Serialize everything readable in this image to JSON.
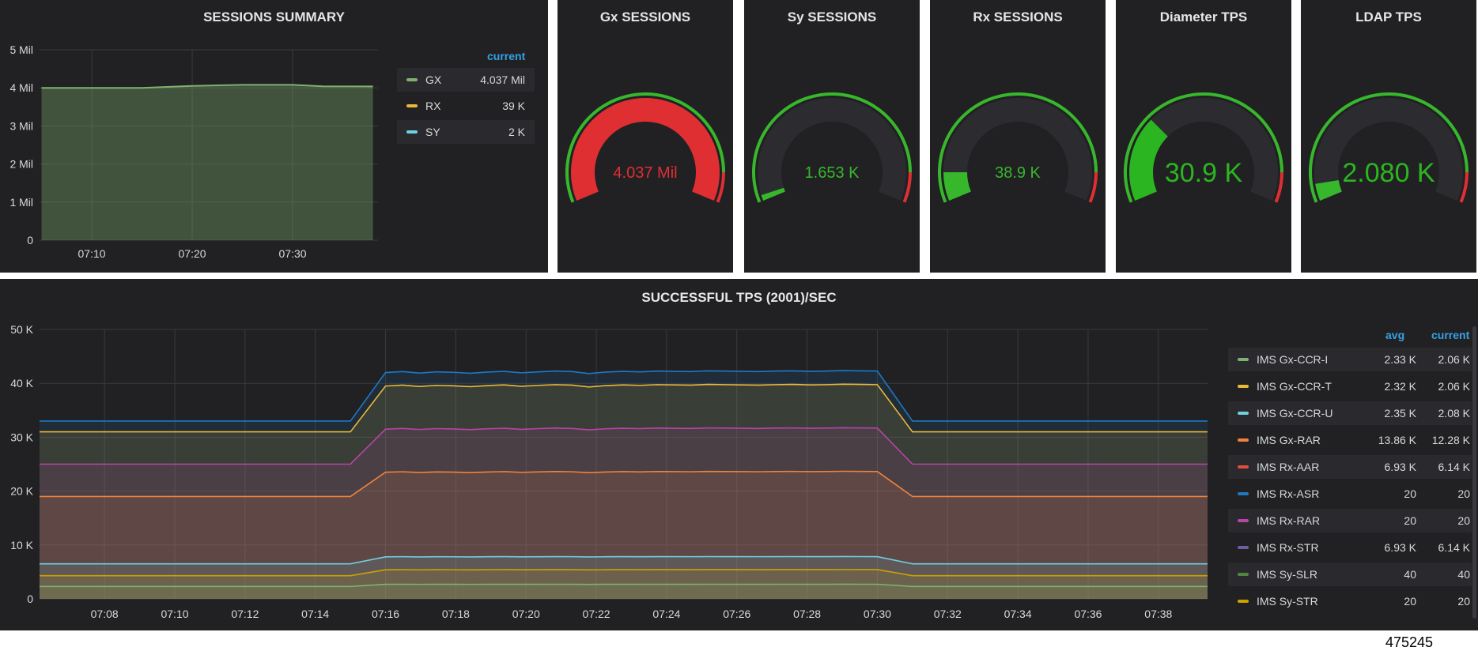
{
  "sessions_summary": {
    "title": "SESSIONS SUMMARY",
    "legend_header": "current",
    "legend": [
      {
        "name": "GX",
        "current": "4.037 Mil",
        "color": "#7eb26d"
      },
      {
        "name": "RX",
        "current": "39 K",
        "color": "#eab839"
      },
      {
        "name": "SY",
        "current": "2 K",
        "color": "#6ed0e0"
      }
    ]
  },
  "gauges": [
    {
      "title": "Gx SESSIONS",
      "value_text": "4.037 Mil",
      "fraction": 1.0,
      "fill_color": "#e02f33",
      "text_color": "#e02f33",
      "big": false
    },
    {
      "title": "Sy SESSIONS",
      "value_text": "1.653 K",
      "fraction": 0.02,
      "fill_color": "#37b72b",
      "text_color": "#37b72b",
      "big": false
    },
    {
      "title": "Rx SESSIONS",
      "value_text": "38.9 K",
      "fraction": 0.1,
      "fill_color": "#37b72b",
      "text_color": "#37b72b",
      "big": false
    },
    {
      "title": "Diameter TPS",
      "value_text": "30.9 K",
      "fraction": 0.3,
      "fill_color": "#2bb520",
      "text_color": "#2bb520",
      "big": true
    },
    {
      "title": "LDAP TPS",
      "value_text": "2.080 K",
      "fraction": 0.06,
      "fill_color": "#37b72b",
      "text_color": "#2bb520",
      "big": true
    }
  ],
  "tps_panel": {
    "title": "SUCCESSFUL TPS (2001)/SEC",
    "legend_headers": {
      "avg": "avg",
      "current": "current"
    },
    "legend": [
      {
        "name": "IMS Gx-CCR-I",
        "avg": "2.33 K",
        "current": "2.06 K",
        "color": "#7eb26d"
      },
      {
        "name": "IMS Gx-CCR-T",
        "avg": "2.32 K",
        "current": "2.06 K",
        "color": "#eab839"
      },
      {
        "name": "IMS Gx-CCR-U",
        "avg": "2.35 K",
        "current": "2.08 K",
        "color": "#6ed0e0"
      },
      {
        "name": "IMS Gx-RAR",
        "avg": "13.86 K",
        "current": "12.28 K",
        "color": "#ef843c"
      },
      {
        "name": "IMS Rx-AAR",
        "avg": "6.93 K",
        "current": "6.14 K",
        "color": "#e24d42"
      },
      {
        "name": "IMS Rx-ASR",
        "avg": "20",
        "current": "20",
        "color": "#1f78c1"
      },
      {
        "name": "IMS Rx-RAR",
        "avg": "20",
        "current": "20",
        "color": "#ba43a9"
      },
      {
        "name": "IMS Rx-STR",
        "avg": "6.93 K",
        "current": "6.14 K",
        "color": "#705da0"
      },
      {
        "name": "IMS Sy-SLR",
        "avg": "40",
        "current": "40",
        "color": "#508642"
      },
      {
        "name": "IMS Sy-STR",
        "avg": "20",
        "current": "20",
        "color": "#cca300"
      }
    ]
  },
  "figure_id": "475245",
  "chart_data": [
    {
      "type": "area",
      "title": "SESSIONS SUMMARY",
      "x": [
        "07:05",
        "07:15",
        "07:20",
        "07:25",
        "07:30",
        "07:33",
        "07:38"
      ],
      "x_ticks": [
        "07:10",
        "07:20",
        "07:30"
      ],
      "y_ticks": [
        "0",
        "1 Mil",
        "2 Mil",
        "3 Mil",
        "4 Mil",
        "5 Mil"
      ],
      "ylim": [
        0,
        5000000
      ],
      "grid": true,
      "legend_position": "right",
      "series": [
        {
          "name": "GX",
          "values": [
            4000000,
            4000000,
            4050000,
            4080000,
            4080000,
            4040000,
            4037000
          ]
        }
      ]
    },
    {
      "type": "area",
      "title": "SUCCESSFUL TPS (2001)/SEC",
      "x_ticks": [
        "07:08",
        "07:10",
        "07:12",
        "07:14",
        "07:16",
        "07:18",
        "07:20",
        "07:22",
        "07:24",
        "07:26",
        "07:28",
        "07:30",
        "07:32",
        "07:34",
        "07:36",
        "07:38"
      ],
      "y_ticks": [
        "0",
        "10 K",
        "20 K",
        "30 K",
        "40 K",
        "50 K"
      ],
      "ylim": [
        0,
        50000
      ],
      "xlim": [
        "07:06",
        "07:39"
      ],
      "grid": true,
      "legend_position": "right",
      "stacked_lines": [
        {
          "name": "IMS Rx-ASR",
          "color": "#1f78c1",
          "base": 33000,
          "peak": 42000
        },
        {
          "name": "IMS Gx-CCR-T",
          "color": "#eab839",
          "base": 31000,
          "peak": 39500
        },
        {
          "name": "IMS Rx-RAR",
          "color": "#ba43a9",
          "base": 25000,
          "peak": 31500
        },
        {
          "name": "IMS Gx-RAR",
          "color": "#ef843c",
          "base": 19000,
          "peak": 23500
        },
        {
          "name": "IMS Gx-CCR-U",
          "color": "#6ed0e0",
          "base": 6500,
          "peak": 7800
        },
        {
          "name": "IMS Sy-STR",
          "color": "#cca300",
          "base": 4300,
          "peak": 5400
        },
        {
          "name": "IMS Gx-CCR-I",
          "color": "#7eb26d",
          "base": 2300,
          "peak": 2700
        }
      ],
      "ramp_up": [
        "07:15",
        "07:16"
      ],
      "ramp_down": [
        "07:30",
        "07:31"
      ]
    }
  ]
}
